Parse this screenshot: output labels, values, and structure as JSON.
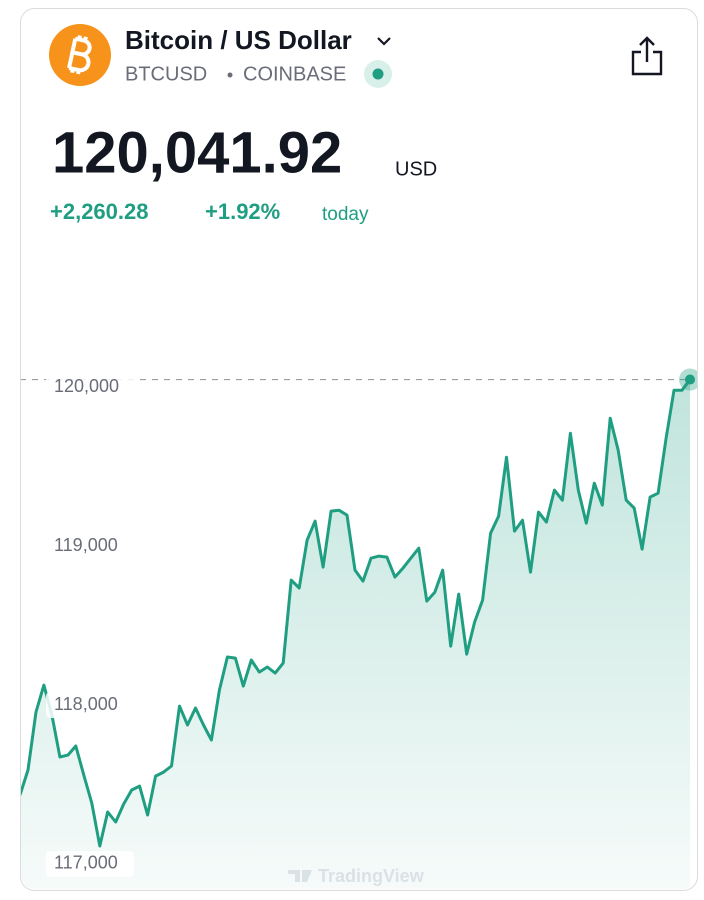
{
  "header": {
    "title": "Bitcoin / US Dollar",
    "symbol": "BTCUSD",
    "exchange": "COINBASE",
    "price": "120,041.92",
    "currency": "USD",
    "change": "+2,260.28",
    "change_percent": "+1.92%",
    "period": "today"
  },
  "chart_data": {
    "type": "line",
    "color": "#1f9e82",
    "values": [
      117428,
      117585,
      117950,
      118119,
      117931,
      117667,
      117679,
      117736,
      117553,
      117377,
      117107,
      117321,
      117258,
      117371,
      117459,
      117484,
      117302,
      117547,
      117572,
      117610,
      117987,
      117868,
      117975,
      117868,
      117774,
      118088,
      118296,
      118289,
      118113,
      118277,
      118201,
      118233,
      118195,
      118258,
      118780,
      118730,
      119031,
      119151,
      118862,
      119214,
      119220,
      119189,
      118843,
      118774,
      118918,
      118931,
      118925,
      118799,
      118855,
      118918,
      118981,
      118648,
      118704,
      118843,
      118365,
      118692,
      118314,
      118516,
      118654,
      119075,
      119182,
      119553,
      119088,
      119157,
      118830,
      119208,
      119145,
      119346,
      119283,
      119704,
      119346,
      119138,
      119390,
      119252,
      119799,
      119597,
      119283,
      119233,
      118975,
      119302,
      119327,
      119673,
      119975,
      119975,
      120041.92
    ],
    "ylim": [
      116830,
      120920
    ],
    "yticks": [
      {
        "value": 117000,
        "label": "117,000"
      },
      {
        "value": 118000,
        "label": "118,000"
      },
      {
        "value": 119000,
        "label": "119,000"
      },
      {
        "value": 120000,
        "label": "120,000"
      }
    ],
    "watermark": "TradingView"
  }
}
